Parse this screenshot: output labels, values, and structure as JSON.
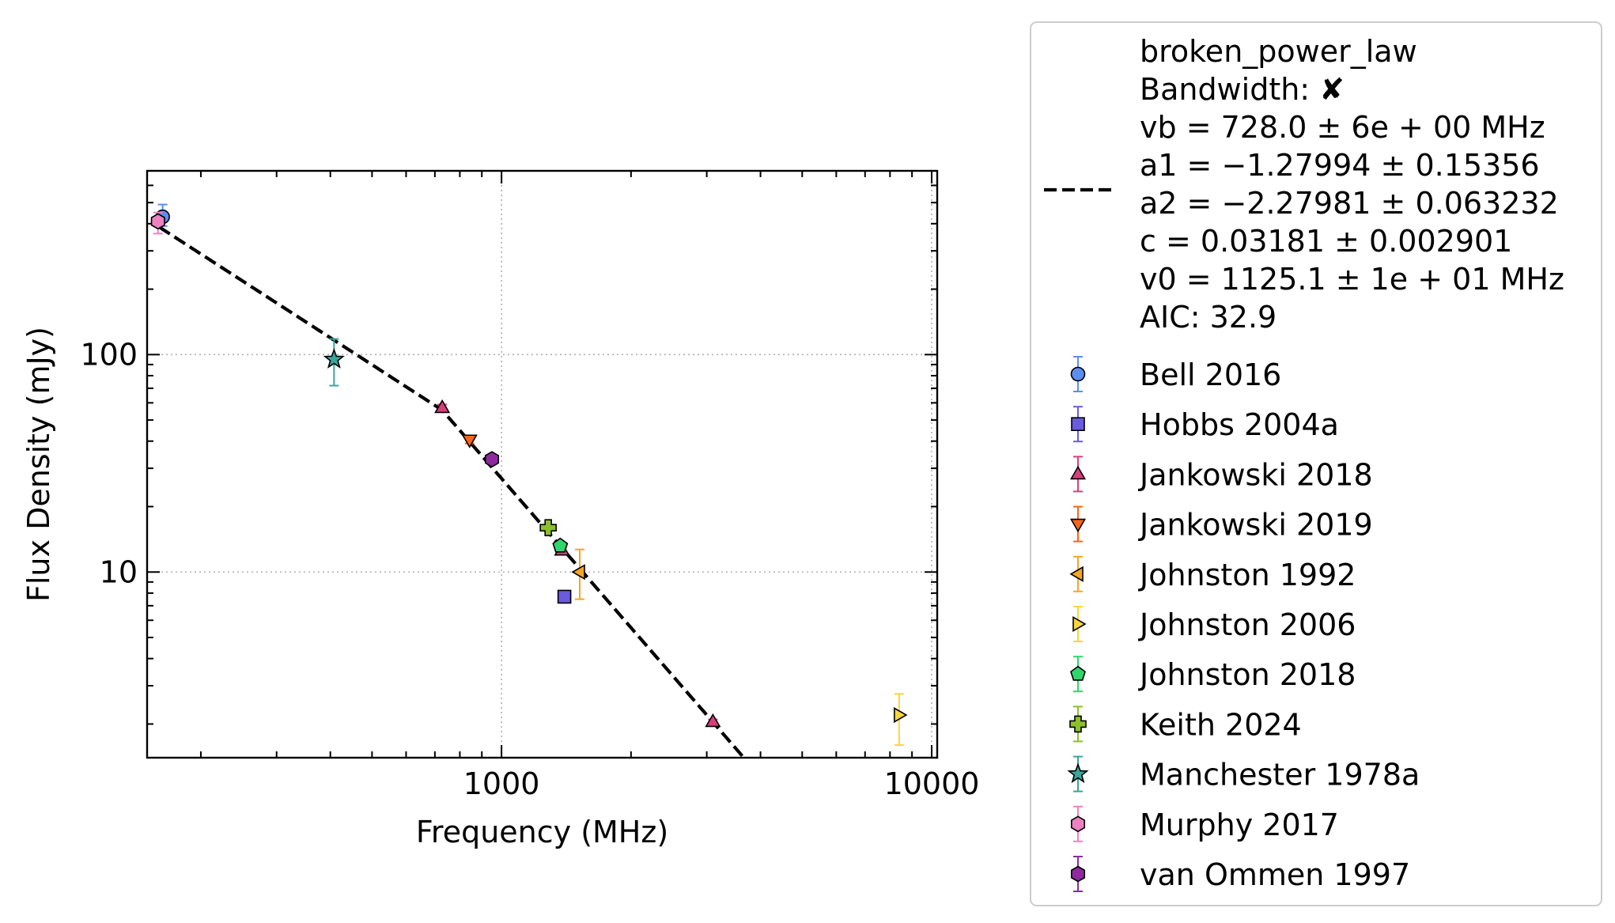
{
  "chart_data": {
    "type": "scatter",
    "xscale": "log",
    "yscale": "log",
    "xlabel": "Frequency (MHz)",
    "ylabel": "Flux Density (mJy)",
    "xlim": [
      150,
      10300
    ],
    "ylim": [
      1.4,
      700
    ],
    "grid": "dotted at major ticks",
    "legend_position": "outside-right",
    "xticks": [
      {
        "value": 1000,
        "label": "1000"
      },
      {
        "value": 10000,
        "label": "10000"
      }
    ],
    "yticks": [
      {
        "value": 10,
        "label": "10"
      },
      {
        "value": 100,
        "label": "100"
      }
    ],
    "fit": {
      "name": "broken_power_law",
      "style": "dashed",
      "color": "#000000",
      "vb": 728.0,
      "a1": -1.27994,
      "a2": -2.27981,
      "c": 0.03181,
      "v0": 1125.1,
      "x_range": [
        160,
        4050
      ],
      "legend_lines": [
        "broken_power_law",
        "Bandwidth: ✘",
        "vb = 728.0 ± 6e + 00 MHz",
        "a1 = −1.27994 ± 0.15356",
        "a2 = −2.27981 ± 0.063232",
        "c = 0.03181 ± 0.002901",
        "v0 = 1125.1 ± 1e + 01 MHz",
        "AIC: 32.9"
      ]
    },
    "series": [
      {
        "name": "Bell 2016",
        "marker": "circle",
        "color": "#5b8ef0",
        "points": [
          {
            "x": 163,
            "y": 430,
            "yerr_low": 40,
            "yerr_high": 60
          }
        ]
      },
      {
        "name": "Hobbs 2004a",
        "marker": "square",
        "color": "#6a5be0",
        "points": [
          {
            "x": 1400,
            "y": 7.7,
            "yerr_low": 0.3,
            "yerr_high": 0.3
          }
        ]
      },
      {
        "name": "Jankowski 2018",
        "marker": "triangle-up",
        "color": "#d63f7a",
        "points": [
          {
            "x": 728,
            "y": 57,
            "yerr_low": 2,
            "yerr_high": 2
          },
          {
            "x": 1382,
            "y": 12.6,
            "yerr_low": 0.5,
            "yerr_high": 0.5
          },
          {
            "x": 3100,
            "y": 2.05,
            "yerr_low": 0.05,
            "yerr_high": 0.05
          }
        ]
      },
      {
        "name": "Jankowski 2019",
        "marker": "triangle-down",
        "color": "#f5661a",
        "points": [
          {
            "x": 843,
            "y": 40.5,
            "yerr_low": 1.5,
            "yerr_high": 1.5
          }
        ]
      },
      {
        "name": "Johnston 1992",
        "marker": "triangle-left",
        "color": "#f5a623",
        "points": [
          {
            "x": 1520,
            "y": 10,
            "yerr_low": 2.5,
            "yerr_high": 2.7
          }
        ]
      },
      {
        "name": "Johnston 2006",
        "marker": "triangle-right",
        "color": "#f7d63a",
        "points": [
          {
            "x": 8400,
            "y": 2.2,
            "yerr_low": 0.6,
            "yerr_high": 0.55
          }
        ]
      },
      {
        "name": "Johnston 2018",
        "marker": "pentagon",
        "color": "#2fd66b",
        "points": [
          {
            "x": 1369,
            "y": 13.2,
            "yerr_low": 0.4,
            "yerr_high": 0.4
          }
        ]
      },
      {
        "name": "Keith 2024",
        "marker": "plus",
        "color": "#8cbf2a",
        "points": [
          {
            "x": 1284,
            "y": 16,
            "yerr_low": 0.5,
            "yerr_high": 0.5
          }
        ]
      },
      {
        "name": "Manchester 1978a",
        "marker": "star",
        "color": "#3aa59a",
        "points": [
          {
            "x": 408,
            "y": 95,
            "yerr_low": 23,
            "yerr_high": 23
          }
        ]
      },
      {
        "name": "Murphy 2017",
        "marker": "hexagon",
        "color": "#ee82c0",
        "points": [
          {
            "x": 159,
            "y": 410,
            "yerr_low": 50,
            "yerr_high": 40
          }
        ]
      },
      {
        "name": "van Ommen 1997",
        "marker": "hexagon",
        "color": "#8e2a9e",
        "points": [
          {
            "x": 950,
            "y": 33,
            "yerr_low": 1,
            "yerr_high": 1
          }
        ]
      }
    ]
  }
}
